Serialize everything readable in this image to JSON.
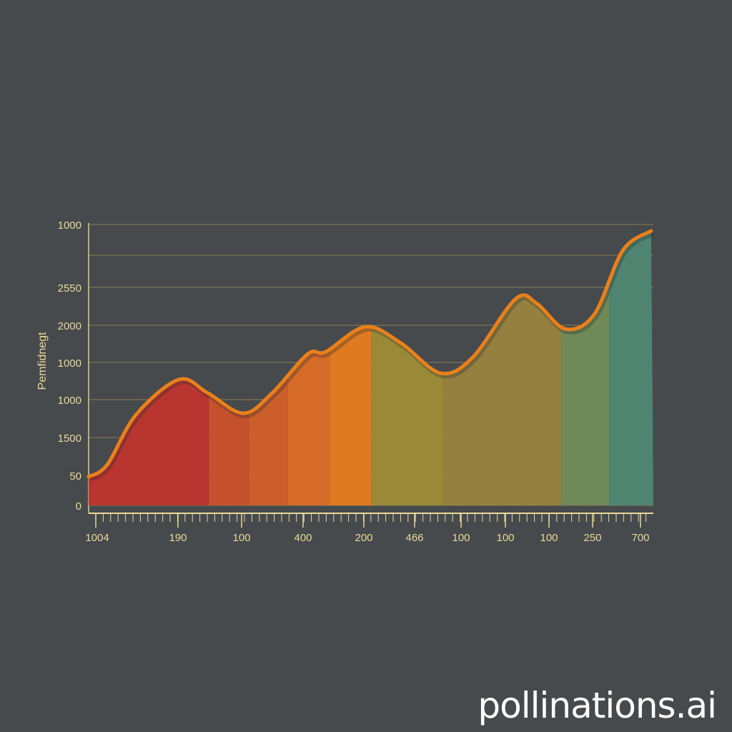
{
  "chart_data": {
    "type": "area",
    "ylabel": "Pemfidnegt",
    "y_tick_labels": [
      "1000",
      "",
      "2550",
      "2000",
      "1000",
      "1000",
      "1500",
      "50",
      "0"
    ],
    "x_tick_labels": [
      "1004",
      "190",
      "100",
      "400",
      "200",
      "466",
      "100",
      "100",
      "100",
      "250",
      "700"
    ],
    "grid": true,
    "xlim": [
      0,
      100
    ],
    "ylim": [
      0,
      100
    ],
    "series": [
      {
        "x": [
          0,
          3.3,
          8.4,
          16,
          21.1,
          27.4,
          32.5,
          38.8,
          42,
          49,
          55.3,
          62.3,
          68,
          75.6,
          79.4,
          84.4,
          89.5,
          94.6,
          99.6
        ],
        "y": [
          10.2,
          14.5,
          32.3,
          44.8,
          40,
          32.8,
          40,
          53.9,
          54.7,
          63.6,
          57.8,
          47.1,
          52.7,
          73.5,
          71.8,
          62.8,
          67.9,
          90.8,
          97.7
        ]
      }
    ],
    "band_boundaries_x": [
      0,
      21.3,
      28.4,
      35.3,
      42.7,
      50.1,
      62.8,
      83.7,
      92.2,
      100
    ],
    "band_colors": [
      "#b83530",
      "#c4502c",
      "#cc5e2c",
      "#d66b28",
      "#e07a20",
      "#9a8a38",
      "#968040",
      "#6f8a58",
      "#4f8570"
    ],
    "line_color": "#e8801c",
    "text_color": "#e8d89a"
  },
  "watermark": "pollinations.ai"
}
